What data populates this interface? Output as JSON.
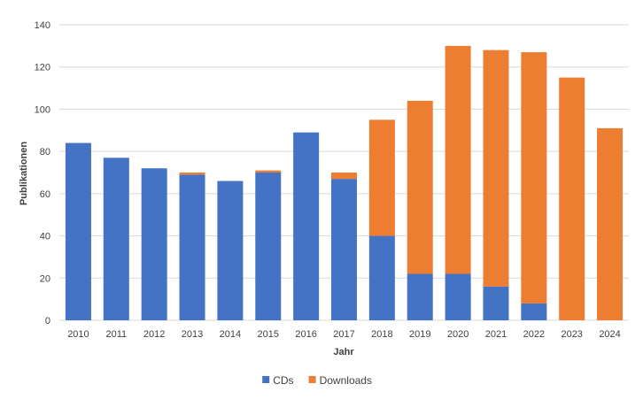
{
  "chart_data": {
    "type": "bar",
    "stacked": true,
    "title": "",
    "xlabel": "Jahr",
    "ylabel": "Publikationen",
    "ylim": [
      0,
      140
    ],
    "yticks": [
      0,
      20,
      40,
      60,
      80,
      100,
      120,
      140
    ],
    "grid": true,
    "legend_position": "bottom",
    "categories": [
      "2010",
      "2011",
      "2012",
      "2013",
      "2014",
      "2015",
      "2016",
      "2017",
      "2018",
      "2019",
      "2020",
      "2021",
      "2022",
      "2023",
      "2024"
    ],
    "series": [
      {
        "name": "CDs",
        "color": "#4472c4",
        "values": [
          84,
          77,
          72,
          69,
          66,
          70,
          89,
          67,
          40,
          22,
          22,
          16,
          8,
          0,
          0
        ]
      },
      {
        "name": "Downloads",
        "color": "#ed7d31",
        "values": [
          0,
          0,
          0,
          1,
          0,
          1,
          0,
          3,
          55,
          82,
          108,
          112,
          119,
          115,
          91
        ]
      }
    ]
  }
}
